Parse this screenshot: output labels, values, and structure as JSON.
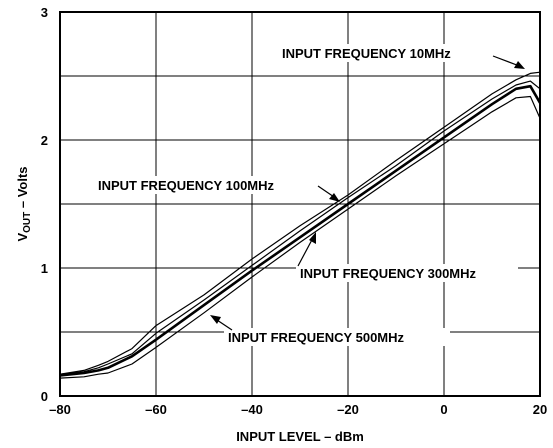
{
  "chart_data": {
    "type": "line",
    "xlabel": "INPUT LEVEL – dBm",
    "ylabel_main": "V",
    "ylabel_sub": "OUT",
    "ylabel_rest": " – Volts",
    "xlim": [
      -80,
      20
    ],
    "ylim": [
      0,
      3
    ],
    "x_ticks": [
      -80,
      -60,
      -40,
      -20,
      0,
      20
    ],
    "x_tick_labels": [
      "–80",
      "–60",
      "–40",
      "–20",
      "0",
      "20"
    ],
    "y_ticks": [
      0,
      1,
      2,
      3
    ],
    "y_tick_labels": [
      "0",
      "1",
      "2",
      "3"
    ],
    "grid": true,
    "series": [
      {
        "name": "INPUT FREQUENCY 10MHz",
        "x": [
          -80,
          -75,
          -72,
          -70,
          -65,
          -60,
          -50,
          -40,
          -30,
          -20,
          -10,
          0,
          10,
          15,
          18,
          20
        ],
        "y": [
          0.17,
          0.2,
          0.24,
          0.27,
          0.37,
          0.55,
          0.79,
          1.07,
          1.33,
          1.57,
          1.84,
          2.1,
          2.36,
          2.47,
          2.52,
          2.53
        ]
      },
      {
        "name": "INPUT FREQUENCY 100MHz",
        "x": [
          -80,
          -75,
          -72,
          -70,
          -65,
          -60,
          -50,
          -40,
          -30,
          -20,
          -10,
          0,
          10,
          15,
          18,
          20
        ],
        "y": [
          0.17,
          0.19,
          0.22,
          0.25,
          0.33,
          0.49,
          0.75,
          1.02,
          1.29,
          1.55,
          1.8,
          2.07,
          2.32,
          2.43,
          2.46,
          2.4
        ]
      },
      {
        "name": "INPUT FREQUENCY 300MHz",
        "x": [
          -80,
          -75,
          -72,
          -70,
          -65,
          -60,
          -50,
          -40,
          -30,
          -20,
          -10,
          0,
          10,
          15,
          18,
          20
        ],
        "y": [
          0.16,
          0.18,
          0.2,
          0.22,
          0.31,
          0.44,
          0.71,
          0.98,
          1.24,
          1.5,
          1.76,
          2.02,
          2.28,
          2.4,
          2.42,
          2.29
        ]
      },
      {
        "name": "INPUT FREQUENCY 500MHz",
        "x": [
          -80,
          -75,
          -72,
          -70,
          -65,
          -60,
          -50,
          -40,
          -30,
          -20,
          -10,
          0,
          10,
          15,
          18,
          20
        ],
        "y": [
          0.14,
          0.15,
          0.17,
          0.18,
          0.25,
          0.38,
          0.65,
          0.93,
          1.2,
          1.46,
          1.72,
          1.97,
          2.22,
          2.33,
          2.34,
          2.17
        ]
      }
    ],
    "annotations": [
      {
        "text": "INPUT FREQUENCY 10MHz",
        "series": 0
      },
      {
        "text": "INPUT FREQUENCY 100MHz",
        "series": 1
      },
      {
        "text": "INPUT FREQUENCY 300MHz",
        "series": 2
      },
      {
        "text": "INPUT FREQUENCY 500MHz",
        "series": 3
      }
    ]
  }
}
